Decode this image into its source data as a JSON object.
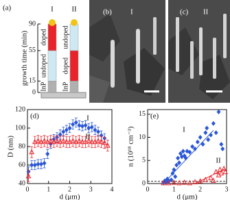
{
  "panel_a": {
    "label": "(a)",
    "ylabel": "growth time (min)",
    "ticks": [
      0,
      15,
      55,
      90
    ],
    "wires": [
      {
        "name": "I",
        "segments": [
          "InP",
          "undoped",
          "doped"
        ],
        "colors": [
          "#b0b0b0",
          "#cfe9f2",
          "#e8242a"
        ]
      },
      {
        "name": "II",
        "segments": [
          "InP",
          "doped",
          "undoped"
        ],
        "colors": [
          "#b0b0b0",
          "#e8242a",
          "#cfe9f2"
        ]
      }
    ]
  },
  "panel_b": {
    "label": "(b)",
    "name": "I"
  },
  "panel_c": {
    "label": "(c)",
    "name": "II"
  },
  "chart_data": [
    {
      "type": "scatter",
      "label": "(d)",
      "xlabel": "d (μm)",
      "ylabel": "D (nm)",
      "xlim": [
        0,
        4
      ],
      "xticks": [
        0,
        1,
        2,
        3,
        4
      ],
      "ylim": [
        40,
        120
      ],
      "yticks": [
        40,
        60,
        80,
        100,
        120
      ],
      "series": [
        {
          "name": "I",
          "color": "#2b57d6",
          "marker": "diamond",
          "error": 5,
          "x": [
            0.05,
            0.2,
            0.35,
            0.5,
            0.65,
            0.8,
            0.95,
            1.1,
            1.25,
            1.4,
            1.55,
            1.7,
            1.85,
            2.0,
            2.15,
            2.3,
            2.45,
            2.6,
            2.75,
            2.9,
            3.05,
            3.2,
            3.35,
            3.5,
            3.65
          ],
          "values": [
            53,
            60,
            60,
            61,
            61,
            62,
            72,
            83,
            88,
            90,
            93,
            96,
            98,
            100,
            104,
            106,
            103,
            102,
            103,
            100,
            101,
            98,
            96,
            92,
            89
          ]
        },
        {
          "name": "II",
          "color": "#e8242a",
          "marker": "triangle",
          "error": 6,
          "x": [
            0.05,
            0.2,
            0.35,
            0.5,
            0.65,
            0.8,
            0.95,
            1.1,
            1.25,
            1.4,
            1.55,
            1.7,
            1.85,
            2.0,
            2.15,
            2.3,
            2.45,
            2.6,
            2.75,
            2.9,
            3.05,
            3.2,
            3.35,
            3.5,
            3.65,
            3.8
          ],
          "values": [
            48,
            74,
            85,
            86,
            85,
            86,
            85,
            86,
            85,
            86,
            85,
            86,
            85,
            85,
            86,
            85,
            86,
            85,
            85,
            86,
            85,
            85,
            86,
            85,
            84,
            81
          ]
        }
      ]
    },
    {
      "type": "scatter",
      "label": "(e)",
      "xlabel": "d (μm)",
      "ylabel": "n (10¹⁸ cm⁻³)",
      "xlim": [
        0,
        3
      ],
      "xticks": [
        0,
        1,
        2,
        3
      ],
      "ylim": [
        0,
        16
      ],
      "yticks": [
        0,
        5,
        10,
        15
      ],
      "reference_line": 0.5,
      "series": [
        {
          "name": "I",
          "color": "#2b57d6",
          "marker": "diamond",
          "x": [
            0.6,
            0.65,
            0.7,
            0.75,
            0.8,
            0.9,
            0.95,
            1.0,
            1.05,
            1.1,
            1.15,
            1.2,
            1.25,
            1.3,
            1.35,
            1.4,
            1.45,
            1.5,
            1.6,
            1.7,
            1.8,
            1.9,
            2.0,
            2.1,
            2.2,
            2.25,
            2.3,
            2.4,
            2.5,
            2.6,
            2.7,
            2.8,
            2.85
          ],
          "values": [
            0.2,
            0.6,
            0.3,
            1.0,
            0.5,
            0.8,
            2.2,
            3,
            1.5,
            4,
            5.5,
            4.5,
            6.5,
            5.8,
            7,
            6,
            5.5,
            7,
            6.8,
            8,
            7.5,
            9,
            10,
            8.5,
            11,
            12,
            9.5,
            10.5,
            13,
            11,
            15.5,
            8.5,
            7.5
          ],
          "fit": {
            "x": [
              0.6,
              2.5
            ],
            "values": [
              0,
              11.5
            ]
          }
        },
        {
          "name": "II",
          "color": "#e8242a",
          "marker": "triangle",
          "x": [
            0.6,
            0.8,
            1.0,
            1.2,
            1.4,
            1.6,
            1.8,
            2.0,
            2.2,
            2.4,
            2.5,
            2.6,
            2.7,
            2.75,
            2.8,
            2.9,
            2.95
          ],
          "values": [
            0.1,
            0.1,
            0.2,
            0.1,
            0.2,
            0.1,
            0.3,
            0.5,
            0.8,
            1.2,
            0.6,
            2.5,
            1.8,
            3,
            2.2,
            3.2,
            2.5
          ],
          "fit": {
            "x": [
              1.8,
              2.95
            ],
            "values": [
              0,
              3.2
            ]
          }
        }
      ]
    }
  ]
}
